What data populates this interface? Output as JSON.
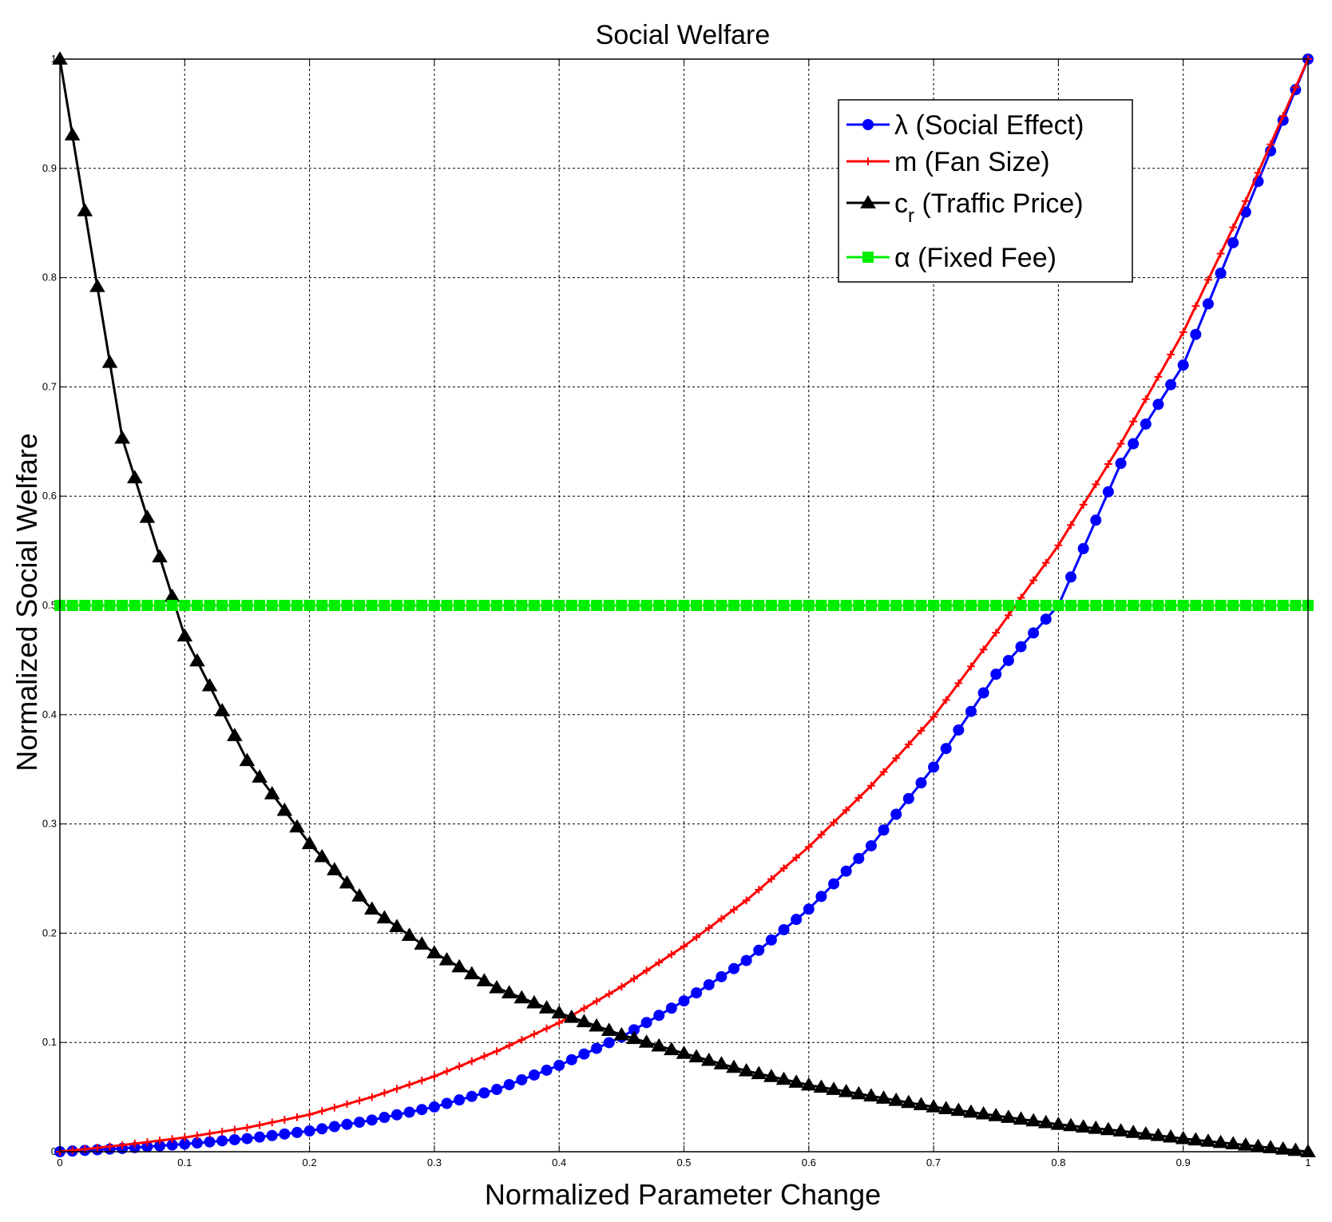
{
  "chart_data": {
    "type": "line",
    "title": "Social Welfare",
    "xlabel": "Normalized Parameter Change",
    "ylabel": "Normalized Social Welfare",
    "xlim": [
      0,
      1
    ],
    "ylim": [
      0,
      1
    ],
    "x_ticks": [
      "0",
      "0.1",
      "0.2",
      "0.3",
      "0.4",
      "0.5",
      "0.6",
      "0.7",
      "0.8",
      "0.9",
      "1"
    ],
    "y_ticks": [
      "0",
      "0.1",
      "0.2",
      "0.3",
      "0.4",
      "0.5",
      "0.6",
      "0.7",
      "0.8",
      "0.9",
      "1"
    ],
    "grid": true,
    "legend_position": "top-right",
    "x": [
      0,
      0.05,
      0.1,
      0.15,
      0.2,
      0.25,
      0.3,
      0.35,
      0.4,
      0.45,
      0.5,
      0.55,
      0.6,
      0.65,
      0.7,
      0.75,
      0.8,
      0.85,
      0.9,
      0.95,
      1.0
    ],
    "series": [
      {
        "name": "λ (Social Effect)",
        "legend_main": "λ (Social Effect)",
        "color": "#0000ff",
        "marker": "circle",
        "values": [
          0,
          0.003,
          0.007,
          0.012,
          0.019,
          0.029,
          0.041,
          0.057,
          0.079,
          0.105,
          0.138,
          0.175,
          0.222,
          0.28,
          0.352,
          0.437,
          0.5,
          0.63,
          0.72,
          0.86,
          1.0
        ]
      },
      {
        "name": "m (Fan Size)",
        "legend_main": "m (Fan Size)",
        "color": "#ff0000",
        "marker": "plus",
        "values": [
          0,
          0.006,
          0.013,
          0.022,
          0.034,
          0.05,
          0.069,
          0.092,
          0.118,
          0.151,
          0.188,
          0.23,
          0.279,
          0.335,
          0.398,
          0.475,
          0.555,
          0.648,
          0.75,
          0.87,
          1.0
        ]
      },
      {
        "name": "cr (Traffic Price)",
        "legend_main": "c",
        "legend_sub": "r",
        "legend_rest": " (Traffic Price)",
        "color": "#000000",
        "marker": "triangle",
        "values": [
          1.0,
          0.653,
          0.472,
          0.358,
          0.282,
          0.222,
          0.182,
          0.15,
          0.127,
          0.107,
          0.09,
          0.074,
          0.061,
          0.051,
          0.041,
          0.033,
          0.025,
          0.019,
          0.012,
          0.006,
          0.0
        ]
      },
      {
        "name": "α (Fixed Fee)",
        "legend_main": "α (Fixed Fee)",
        "color": "#00ee00",
        "marker": "square",
        "values": [
          0.5,
          0.5,
          0.5,
          0.5,
          0.5,
          0.5,
          0.5,
          0.5,
          0.5,
          0.5,
          0.5,
          0.5,
          0.5,
          0.5,
          0.5,
          0.5,
          0.5,
          0.5,
          0.5,
          0.5,
          0.5
        ]
      }
    ]
  }
}
